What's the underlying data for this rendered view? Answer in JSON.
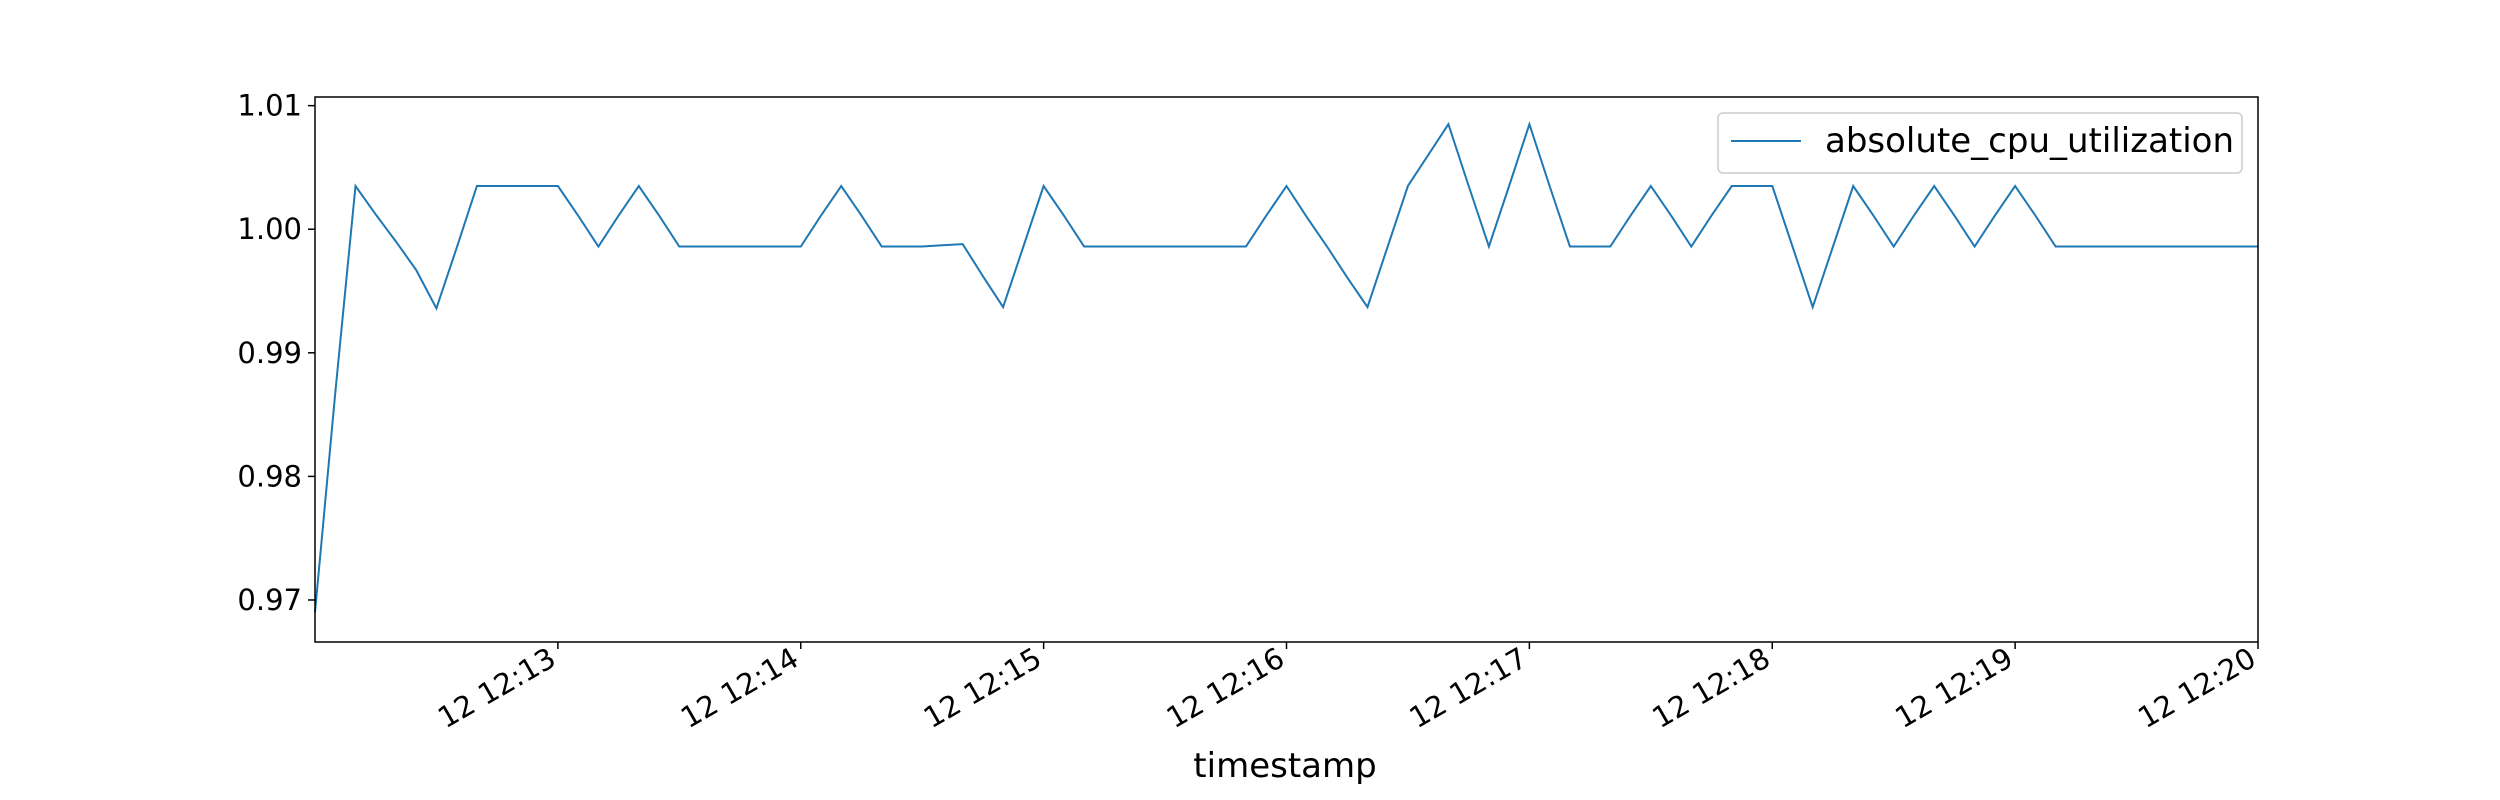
{
  "chart_data": {
    "type": "line",
    "title": "",
    "xlabel": "timestamp",
    "ylabel": "",
    "x_type": "time",
    "x_range": [
      "12:12:00",
      "12:20:00"
    ],
    "xlim_minutes_offset_note": "",
    "ylim": [
      0.9666,
      1.0107
    ],
    "x_tick_labels": [
      "12 12:13",
      "12 12:14",
      "12 12:15",
      "12 12:16",
      "12 12:17",
      "12 12:18",
      "12 12:19",
      "12 12:20"
    ],
    "x_tick_times": [
      "12:13:00",
      "12:14:00",
      "12:15:00",
      "12:16:00",
      "12:17:00",
      "12:18:00",
      "12:19:00",
      "12:20:00"
    ],
    "y_ticks": [
      0.97,
      0.98,
      0.99,
      1.0,
      1.01
    ],
    "y_tick_labels": [
      "0.97",
      "0.98",
      "0.99",
      "1.00",
      "1.01"
    ],
    "grid": false,
    "legend_position": "top-right",
    "line_color": "#1f77b4",
    "series": [
      {
        "name": "absolute_cpu_utilization",
        "x": [
          "12:12:00",
          "12:12:05",
          "12:12:10",
          "12:12:15",
          "12:12:20",
          "12:12:25",
          "12:12:30",
          "12:12:35",
          "12:12:40",
          "12:12:45",
          "12:12:50",
          "12:12:55",
          "12:13:00",
          "12:13:05",
          "12:13:10",
          "12:13:15",
          "12:13:20",
          "12:13:25",
          "12:13:30",
          "12:13:35",
          "12:13:40",
          "12:13:45",
          "12:13:50",
          "12:13:55",
          "12:14:00",
          "12:14:05",
          "12:14:10",
          "12:14:15",
          "12:14:20",
          "12:14:25",
          "12:14:30",
          "12:14:35",
          "12:14:40",
          "12:14:45",
          "12:14:50",
          "12:14:55",
          "12:15:00",
          "12:15:05",
          "12:15:10",
          "12:15:15",
          "12:15:20",
          "12:15:25",
          "12:15:30",
          "12:15:35",
          "12:15:40",
          "12:15:45",
          "12:15:50",
          "12:15:55",
          "12:16:00",
          "12:16:05",
          "12:16:10",
          "12:16:15",
          "12:16:20",
          "12:16:25",
          "12:16:30",
          "12:16:35",
          "12:16:40",
          "12:16:45",
          "12:16:50",
          "12:16:55",
          "12:17:00",
          "12:17:05",
          "12:17:10",
          "12:17:15",
          "12:17:20",
          "12:17:25",
          "12:17:30",
          "12:17:35",
          "12:17:40",
          "12:17:45",
          "12:17:50",
          "12:17:55",
          "12:18:00",
          "12:18:05",
          "12:18:10",
          "12:18:15",
          "12:18:20",
          "12:18:25",
          "12:18:30",
          "12:18:35",
          "12:18:40",
          "12:18:45",
          "12:18:50",
          "12:18:55",
          "12:19:00",
          "12:19:05",
          "12:19:10",
          "12:19:15",
          "12:19:20",
          "12:19:25",
          "12:19:30",
          "12:19:35",
          "12:19:40",
          "12:19:45",
          "12:19:50",
          "12:19:55",
          "12:20:00"
        ],
        "values": [
          0.969,
          0.9867,
          1.0035,
          1.0012,
          0.999,
          0.9967,
          0.9936,
          0.9985,
          1.0035,
          1.0035,
          1.0035,
          1.0035,
          1.0035,
          1.0011,
          0.9986,
          1.0011,
          1.0035,
          1.0011,
          0.9986,
          0.9986,
          0.9986,
          0.9986,
          0.9986,
          0.9986,
          0.9986,
          1.0011,
          1.0035,
          1.0011,
          0.9986,
          0.9986,
          0.9986,
          0.9987,
          0.9988,
          0.9962,
          0.9937,
          0.9986,
          1.0035,
          1.0011,
          0.9986,
          0.9986,
          0.9986,
          0.9986,
          0.9986,
          0.9986,
          0.9986,
          0.9986,
          0.9986,
          1.0011,
          1.0035,
          1.001,
          0.9986,
          0.9961,
          0.9937,
          0.9986,
          1.0035,
          1.006,
          1.0085,
          1.0035,
          0.9986,
          1.0035,
          1.0085,
          1.0035,
          0.9986,
          0.9986,
          0.9986,
          1.0011,
          1.0035,
          1.0011,
          0.9986,
          1.0011,
          1.0035,
          1.0035,
          1.0035,
          0.9986,
          0.9937,
          0.9986,
          1.0035,
          1.0011,
          0.9986,
          1.0011,
          1.0035,
          1.0011,
          0.9986,
          1.0011,
          1.0035,
          1.0011,
          0.9986,
          0.9986,
          0.9986,
          0.9986,
          0.9986,
          0.9986,
          0.9986,
          0.9986,
          0.9986,
          0.9986,
          0.9986
        ]
      }
    ]
  }
}
